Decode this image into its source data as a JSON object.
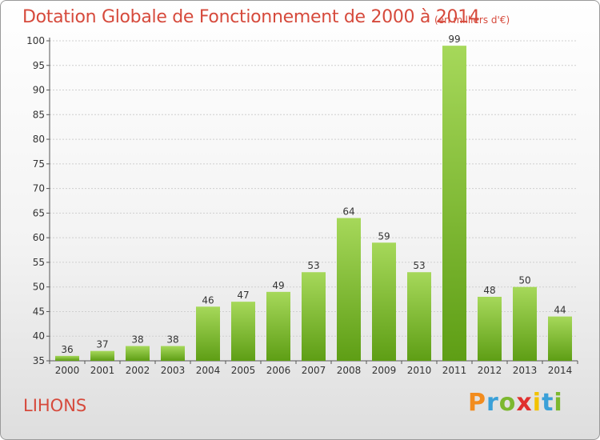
{
  "header": {
    "title": "Dotation Globale de Fonctionnement de 2000 à 2014",
    "unit": "(en milliers d'€)"
  },
  "footer": {
    "commune": "LIHONS",
    "logo": {
      "letters": [
        "P",
        "r",
        "o",
        "x",
        "i",
        "t",
        "i"
      ],
      "colors": [
        "#f28c1e",
        "#3aa0d8",
        "#7cb82f",
        "#e0302e",
        "#f2c200",
        "#3aa0d8",
        "#7cb82f"
      ]
    }
  },
  "colors": {
    "bar_top": "#a6d85a",
    "bar_bottom": "#5e9e15",
    "text_accent": "#d64a3c"
  },
  "chart_data": {
    "type": "bar",
    "title": "Dotation Globale de Fonctionnement de 2000 à 2014",
    "subtitle": "(en milliers d'€)",
    "xlabel": "",
    "ylabel": "",
    "categories": [
      "2000",
      "2001",
      "2002",
      "2003",
      "2004",
      "2005",
      "2006",
      "2007",
      "2008",
      "2009",
      "2010",
      "2011",
      "2012",
      "2013",
      "2014"
    ],
    "values": [
      36,
      37,
      38,
      38,
      46,
      47,
      49,
      53,
      64,
      59,
      53,
      99,
      48,
      50,
      44
    ],
    "ylim": [
      35,
      100
    ],
    "yticks": [
      35,
      40,
      45,
      50,
      55,
      60,
      65,
      70,
      75,
      80,
      85,
      90,
      95,
      100
    ],
    "grid": true,
    "data_labels": true
  }
}
